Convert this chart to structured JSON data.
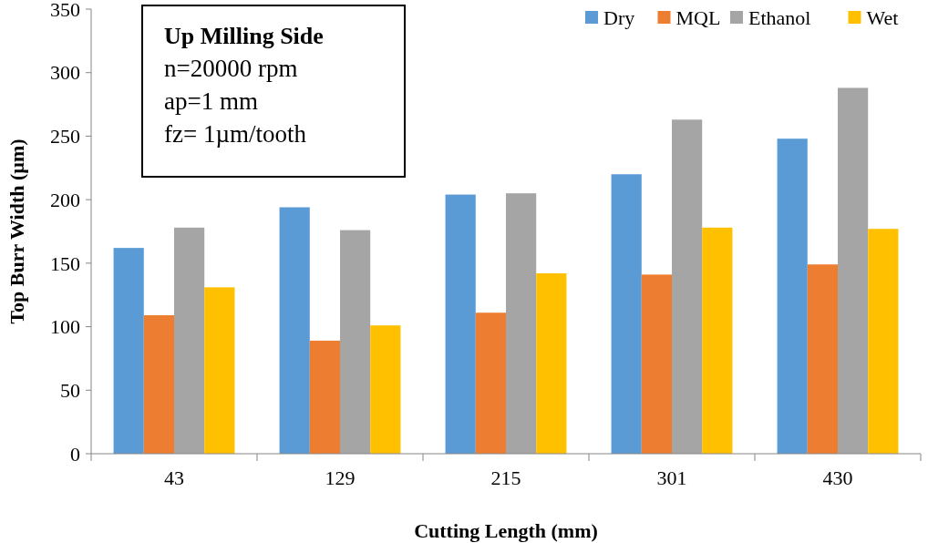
{
  "chart_data": {
    "type": "bar",
    "xlabel": "Cutting Length (mm)",
    "ylabel": "Top Burr Width (µm)",
    "categories": [
      "43",
      "129",
      "215",
      "301",
      "430"
    ],
    "series": [
      {
        "name": "Dry",
        "color": "#5b9bd5",
        "values": [
          162,
          194,
          204,
          220,
          248
        ]
      },
      {
        "name": "MQL",
        "color": "#ed7d31",
        "values": [
          109,
          89,
          111,
          141,
          149
        ]
      },
      {
        "name": "Ethanol",
        "color": "#a5a5a5",
        "values": [
          178,
          176,
          205,
          263,
          288
        ]
      },
      {
        "name": "Wet",
        "color": "#ffc000",
        "values": [
          131,
          101,
          142,
          178,
          177
        ]
      }
    ],
    "ylim": [
      0,
      350
    ],
    "yticks": [
      0,
      50,
      100,
      150,
      200,
      250,
      300,
      350
    ],
    "grid": false,
    "legend": "top right",
    "annotations": [
      "Up Milling  Side",
      "n=20000 rpm",
      "ap=1 mm",
      "fz= 1µm/tooth"
    ]
  }
}
